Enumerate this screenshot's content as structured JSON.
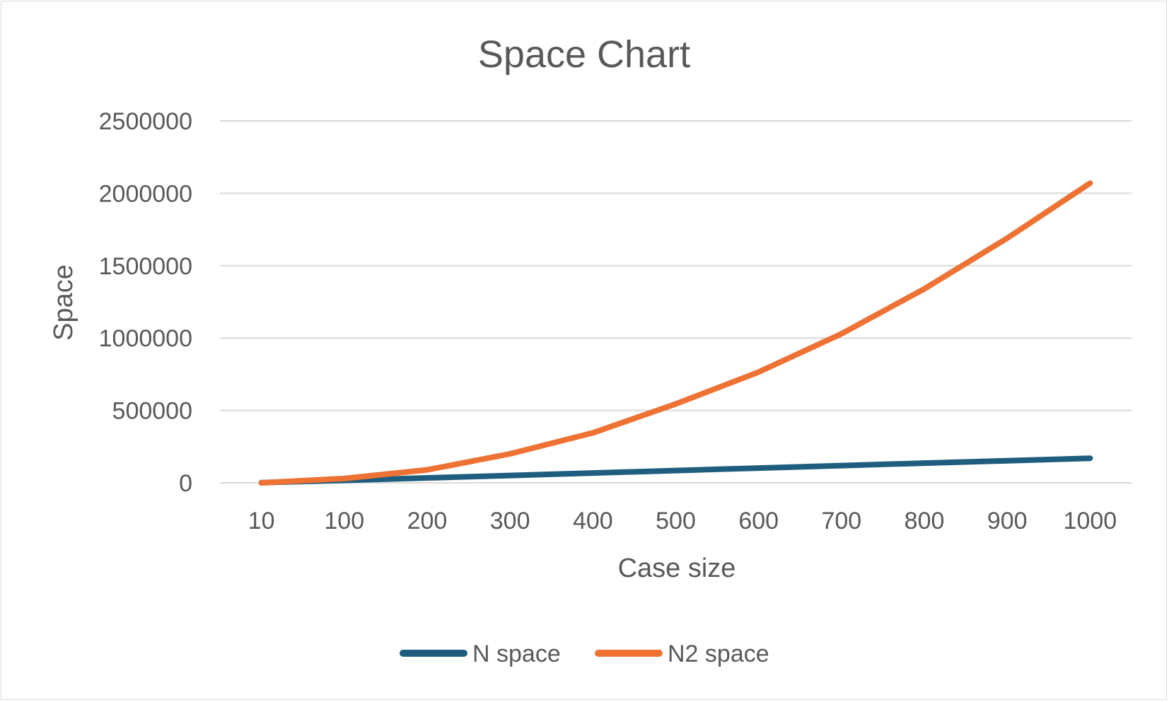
{
  "chart_data": {
    "type": "line",
    "title": "Space Chart",
    "xlabel": "Case size",
    "ylabel": "Space",
    "categories": [
      "10",
      "100",
      "200",
      "300",
      "400",
      "500",
      "600",
      "700",
      "800",
      "900",
      "1000"
    ],
    "y_ticks": [
      "0",
      "500000",
      "1000000",
      "1500000",
      "2000000",
      "2500000"
    ],
    "ylim": [
      0,
      2500000
    ],
    "grid": true,
    "legend_position": "bottom",
    "series": [
      {
        "name": "N space",
        "color": "#1f5d7e",
        "values": [
          1700,
          17000,
          34000,
          51000,
          68000,
          85000,
          102000,
          119000,
          136000,
          153000,
          170000
        ]
      },
      {
        "name": "N2 space",
        "color": "#ed7233",
        "values": [
          0,
          30000,
          90000,
          200000,
          345000,
          545000,
          765000,
          1030000,
          1340000,
          1690000,
          2070000
        ]
      }
    ]
  }
}
